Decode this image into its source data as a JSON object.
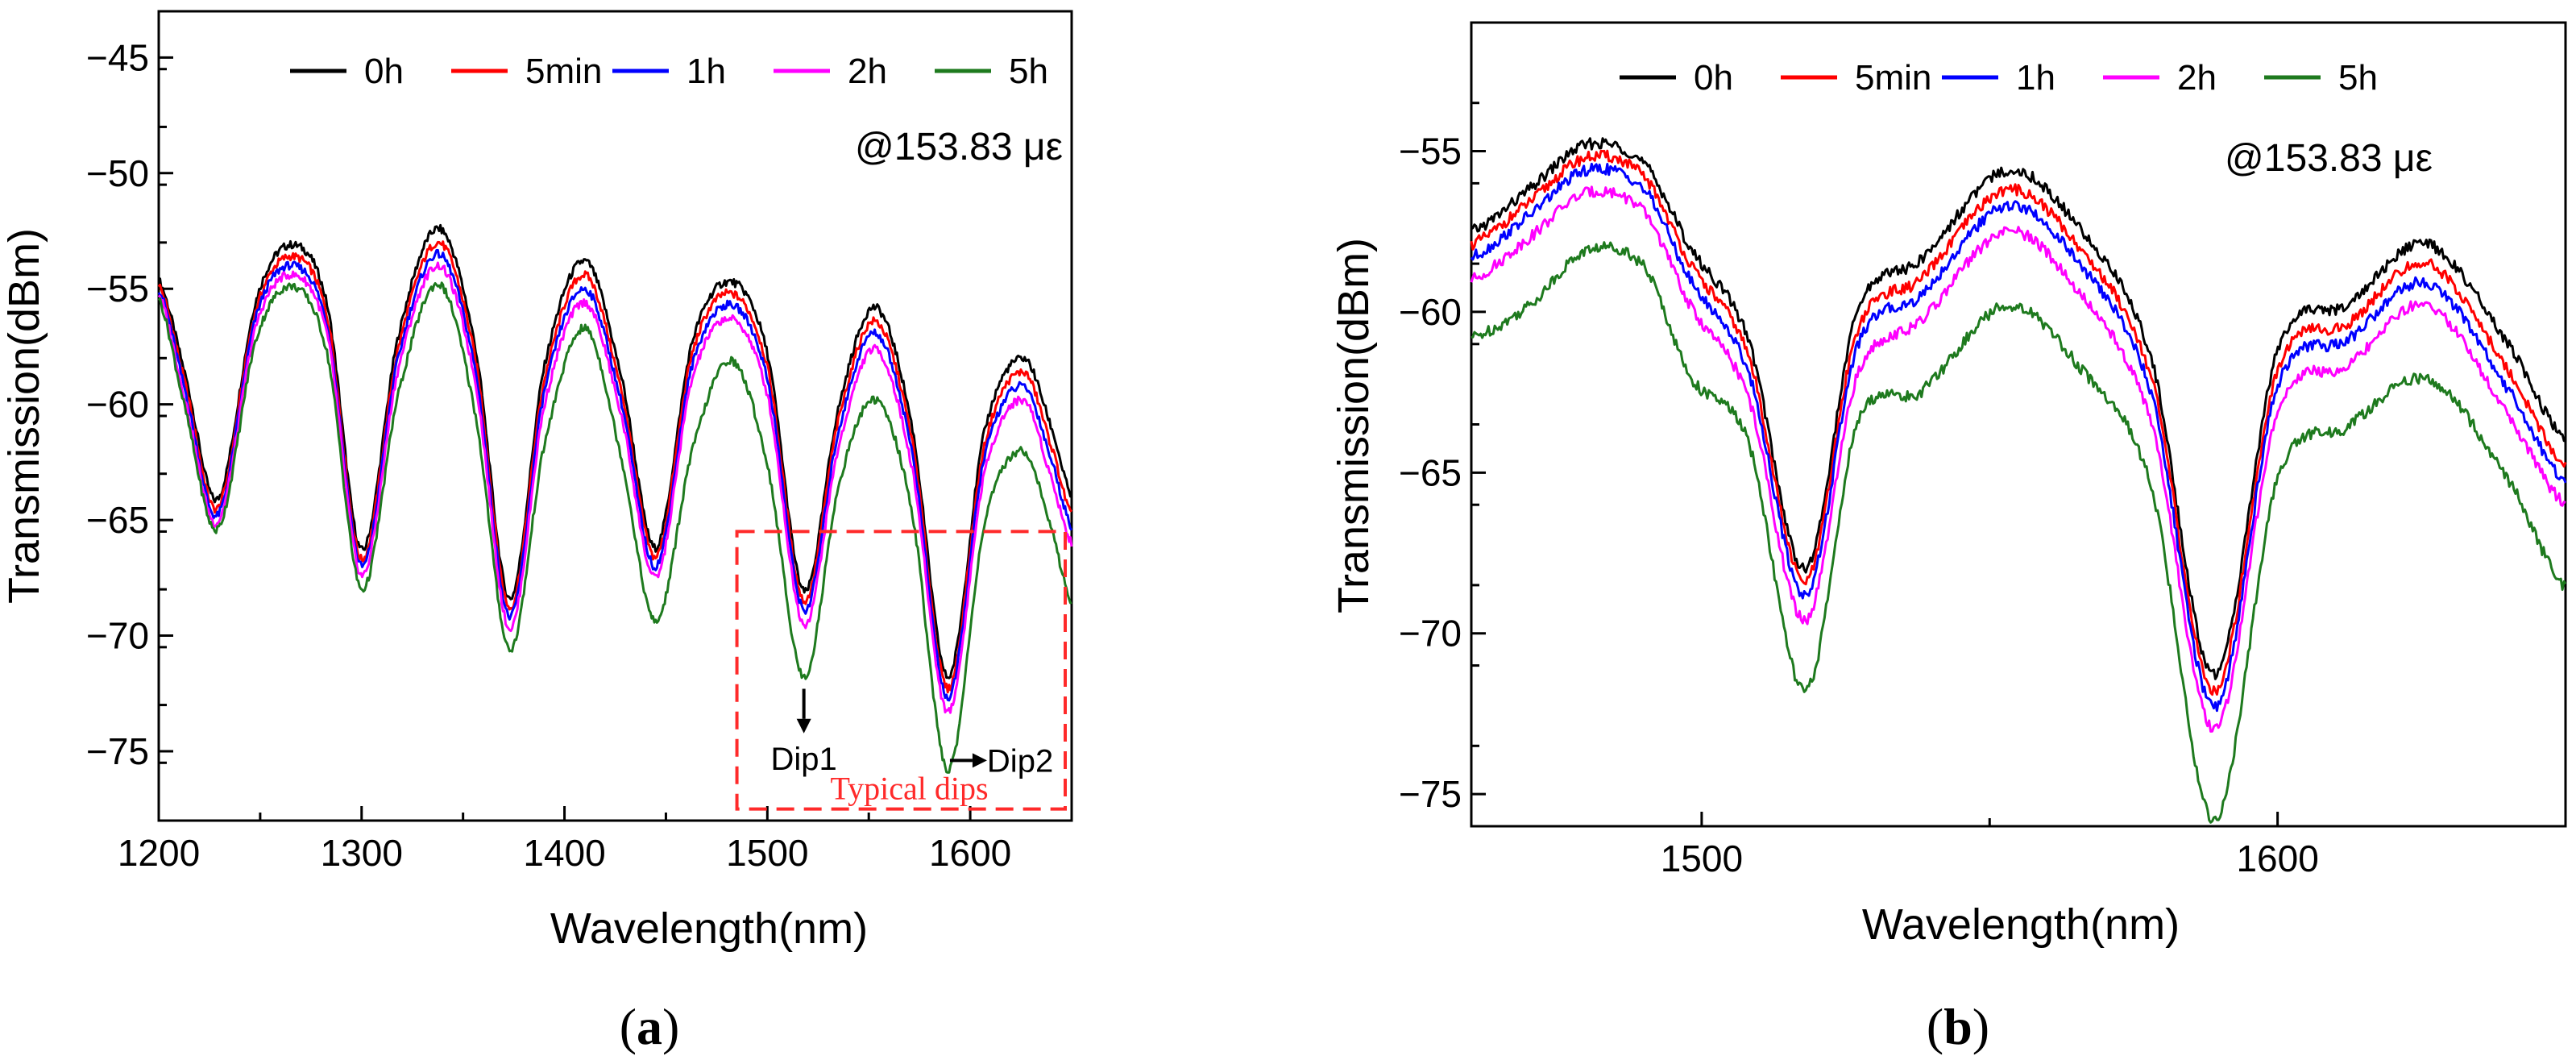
{
  "chart_data": [
    {
      "panel": "a",
      "type": "line",
      "panel_label_open": "(",
      "panel_label_letter": "a",
      "panel_label_close": ")",
      "xlabel": "Wavelength(nm)",
      "ylabel": "Transmission(dBm)",
      "xlim": [
        1200,
        1650
      ],
      "ylim": [
        -78,
        -43
      ],
      "xticks": [
        1200,
        1300,
        1400,
        1500,
        1600
      ],
      "yticks": [
        -45,
        -50,
        -55,
        -60,
        -65,
        -70,
        -75
      ],
      "xtick_labels": [
        "1200",
        "1300",
        "1400",
        "1500",
        "1600"
      ],
      "ytick_labels": [
        "−45",
        "−50",
        "−55",
        "−60",
        "−65",
        "−70",
        "−75"
      ],
      "legend": [
        "0h",
        "5min",
        "1h",
        "2h",
        "5h"
      ],
      "annotation": "@153.83 με",
      "dip_labels": {
        "dip1": "Dip1",
        "dip2": "Dip2"
      },
      "highlight_box_label": "Typical dips",
      "highlight_box_range": {
        "x": [
          1485,
          1650
        ],
        "y": [
          -77.5,
          -65.5
        ]
      },
      "series": [
        {
          "name": "0h",
          "color": "#000000",
          "x": [
            1200,
            1213,
            1229,
            1248,
            1266,
            1283,
            1300,
            1318,
            1338,
            1356,
            1373,
            1390,
            1410,
            1428,
            1445,
            1463,
            1482,
            1500,
            1518,
            1535,
            1553,
            1571,
            1589,
            1607,
            1626,
            1640,
            1650
          ],
          "values": [
            -54.6,
            -58.7,
            -64.1,
            -55.5,
            -53.1,
            -55.7,
            -66.3,
            -57.1,
            -52.4,
            -57.5,
            -68.4,
            -58.4,
            -53.8,
            -58.8,
            -66.2,
            -57.3,
            -54.7,
            -57.8,
            -68.1,
            -60.2,
            -55.8,
            -60.8,
            -71.8,
            -61.2,
            -58.0,
            -61.0,
            -64.0
          ]
        },
        {
          "name": "5min",
          "color": "#ff0000",
          "x": [
            1200,
            1213,
            1229,
            1248,
            1266,
            1283,
            1300,
            1318,
            1338,
            1356,
            1373,
            1390,
            1410,
            1428,
            1445,
            1463,
            1482,
            1500,
            1518,
            1535,
            1553,
            1571,
            1589,
            1607,
            1626,
            1640,
            1650
          ],
          "values": [
            -54.8,
            -59.1,
            -64.5,
            -55.9,
            -53.6,
            -56.2,
            -66.7,
            -57.6,
            -53.0,
            -58.0,
            -68.8,
            -59.0,
            -54.4,
            -59.4,
            -66.6,
            -57.8,
            -55.2,
            -58.4,
            -68.5,
            -60.7,
            -56.4,
            -61.4,
            -72.3,
            -61.8,
            -58.6,
            -61.8,
            -64.8
          ]
        },
        {
          "name": "1h",
          "color": "#0000ff",
          "x": [
            1200,
            1213,
            1229,
            1248,
            1266,
            1283,
            1300,
            1318,
            1338,
            1356,
            1373,
            1390,
            1410,
            1428,
            1445,
            1463,
            1482,
            1500,
            1518,
            1535,
            1553,
            1571,
            1589,
            1607,
            1626,
            1640,
            1650
          ],
          "values": [
            -55.0,
            -59.4,
            -64.8,
            -56.2,
            -54.0,
            -56.6,
            -67.0,
            -58.0,
            -53.5,
            -58.5,
            -69.2,
            -59.5,
            -55.0,
            -59.9,
            -67.0,
            -58.3,
            -55.7,
            -58.9,
            -68.9,
            -61.2,
            -56.9,
            -61.9,
            -72.7,
            -62.3,
            -59.2,
            -62.4,
            -65.3
          ]
        },
        {
          "name": "2h",
          "color": "#ff00ff",
          "x": [
            1200,
            1213,
            1229,
            1248,
            1266,
            1283,
            1300,
            1318,
            1338,
            1356,
            1373,
            1390,
            1410,
            1428,
            1445,
            1463,
            1482,
            1500,
            1518,
            1535,
            1553,
            1571,
            1589,
            1607,
            1626,
            1640,
            1650
          ],
          "values": [
            -55.2,
            -59.8,
            -65.1,
            -56.6,
            -54.4,
            -57.0,
            -67.4,
            -58.5,
            -54.0,
            -59.0,
            -69.7,
            -60.1,
            -55.6,
            -60.5,
            -67.5,
            -58.9,
            -56.3,
            -59.6,
            -69.5,
            -61.9,
            -57.6,
            -62.6,
            -73.3,
            -63.0,
            -59.8,
            -63.2,
            -66.0
          ]
        },
        {
          "name": "5h",
          "color": "#1e7a1e",
          "x": [
            1200,
            1213,
            1229,
            1248,
            1266,
            1283,
            1300,
            1318,
            1338,
            1356,
            1373,
            1390,
            1410,
            1428,
            1445,
            1463,
            1482,
            1500,
            1518,
            1535,
            1553,
            1571,
            1589,
            1607,
            1626,
            1640,
            1650
          ],
          "values": [
            -55.4,
            -60.2,
            -65.4,
            -57.2,
            -54.9,
            -57.8,
            -68.0,
            -59.6,
            -54.8,
            -60.4,
            -70.6,
            -61.8,
            -56.7,
            -62.3,
            -69.4,
            -62.0,
            -58.1,
            -62.6,
            -71.8,
            -63.6,
            -59.8,
            -64.5,
            -75.8,
            -65.2,
            -62.0,
            -65.4,
            -68.6
          ]
        }
      ]
    },
    {
      "panel": "b",
      "type": "line",
      "panel_label_open": "(",
      "panel_label_letter": "b",
      "panel_label_close": ")",
      "xlabel": "Wavelength(nm)",
      "ylabel": "Transmission(dBm)",
      "xlim": [
        1460,
        1650
      ],
      "ylim": [
        -76,
        -51
      ],
      "xticks": [
        1500,
        1600
      ],
      "yticks": [
        -55,
        -60,
        -65,
        -70,
        -75
      ],
      "xtick_labels": [
        "1500",
        "1600"
      ],
      "ytick_labels": [
        "−55",
        "−60",
        "−65",
        "−70",
        "−75"
      ],
      "legend": [
        "0h",
        "5min",
        "1h",
        "2h",
        "5h"
      ],
      "annotation": "@153.83 με",
      "series": [
        {
          "name": "0h",
          "color": "#000000",
          "x": [
            1460,
            1470,
            1480,
            1490,
            1498,
            1508,
            1518,
            1527,
            1538,
            1553,
            1566,
            1578,
            1589,
            1600,
            1612,
            1626,
            1640,
            1650
          ],
          "values": [
            -57.5,
            -56.2,
            -54.8,
            -55.4,
            -58.0,
            -60.8,
            -68.0,
            -60.0,
            -58.4,
            -55.6,
            -57.5,
            -61.4,
            -71.3,
            -61.2,
            -59.8,
            -57.9,
            -61.0,
            -64.0
          ]
        },
        {
          "name": "5min",
          "color": "#ff0000",
          "x": [
            1460,
            1470,
            1480,
            1490,
            1498,
            1508,
            1518,
            1527,
            1538,
            1553,
            1566,
            1578,
            1589,
            1600,
            1612,
            1626,
            1640,
            1650
          ],
          "values": [
            -57.9,
            -56.6,
            -55.2,
            -55.8,
            -58.5,
            -61.3,
            -68.4,
            -60.6,
            -59.0,
            -56.2,
            -58.1,
            -62.0,
            -71.8,
            -61.8,
            -60.4,
            -58.5,
            -61.8,
            -64.8
          ]
        },
        {
          "name": "1h",
          "color": "#0000ff",
          "x": [
            1460,
            1470,
            1480,
            1490,
            1498,
            1508,
            1518,
            1527,
            1538,
            1553,
            1566,
            1578,
            1589,
            1600,
            1612,
            1626,
            1640,
            1650
          ],
          "values": [
            -58.3,
            -57.0,
            -55.6,
            -56.2,
            -59.0,
            -61.8,
            -68.8,
            -61.1,
            -59.5,
            -56.7,
            -58.6,
            -62.5,
            -72.3,
            -62.3,
            -60.9,
            -59.1,
            -62.4,
            -65.3
          ]
        },
        {
          "name": "2h",
          "color": "#ff00ff",
          "x": [
            1460,
            1470,
            1480,
            1490,
            1498,
            1508,
            1518,
            1527,
            1538,
            1553,
            1566,
            1578,
            1589,
            1600,
            1612,
            1626,
            1640,
            1650
          ],
          "values": [
            -59.0,
            -57.7,
            -56.3,
            -56.9,
            -59.8,
            -62.6,
            -69.6,
            -62.0,
            -60.3,
            -57.5,
            -59.5,
            -63.4,
            -73.0,
            -63.1,
            -61.7,
            -59.8,
            -63.2,
            -66.0
          ]
        },
        {
          "name": "5h",
          "color": "#1e7a1e",
          "x": [
            1460,
            1470,
            1480,
            1490,
            1498,
            1508,
            1518,
            1527,
            1538,
            1553,
            1566,
            1578,
            1589,
            1600,
            1612,
            1626,
            1640,
            1650
          ],
          "values": [
            -60.8,
            -59.8,
            -58.1,
            -58.6,
            -62.0,
            -64.0,
            -71.8,
            -63.5,
            -62.5,
            -59.8,
            -61.8,
            -65.4,
            -75.8,
            -65.2,
            -63.6,
            -62.1,
            -65.2,
            -68.6
          ]
        }
      ]
    }
  ]
}
